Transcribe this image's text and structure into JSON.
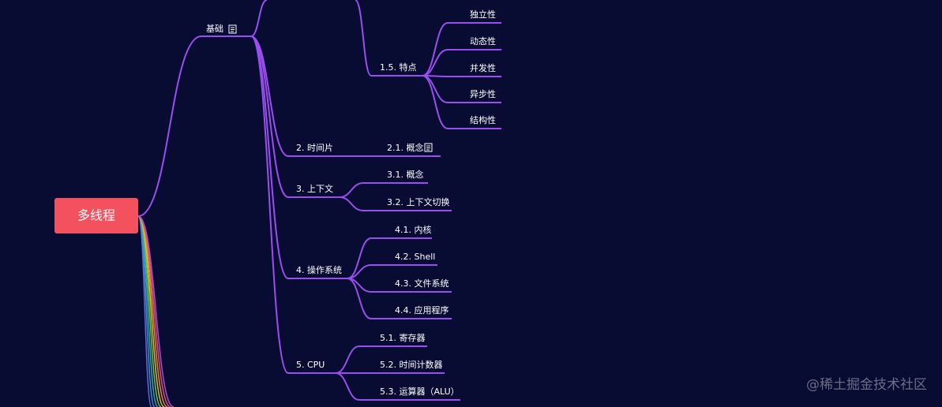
{
  "mindmap": {
    "root": "多线程",
    "children": [
      {
        "label": "基础",
        "children": [
          {
            "label": "1.5. 特点",
            "children": [
              {
                "label": "独立性"
              },
              {
                "label": "动态性"
              },
              {
                "label": "并发性"
              },
              {
                "label": "异步性"
              },
              {
                "label": "结构性"
              }
            ]
          },
          {
            "label": "2. 时间片",
            "children": [
              {
                "label": "2.1. 概念"
              }
            ]
          },
          {
            "label": "3. 上下文",
            "children": [
              {
                "label": "3.1. 概念"
              },
              {
                "label": "3.2. 上下文切换"
              }
            ]
          },
          {
            "label": "4. 操作系统",
            "children": [
              {
                "label": "4.1. 内核"
              },
              {
                "label": "4.2. Shell"
              },
              {
                "label": "4.3. 文件系统"
              },
              {
                "label": "4.4. 应用程序"
              }
            ]
          },
          {
            "label": "5. CPU",
            "children": [
              {
                "label": "5.1. 寄存器"
              },
              {
                "label": "5.2. 时间计数器"
              },
              {
                "label": "5.3. 运算器（ALU）"
              }
            ]
          }
        ]
      }
    ]
  },
  "watermark": "@稀土掘金技术社区"
}
